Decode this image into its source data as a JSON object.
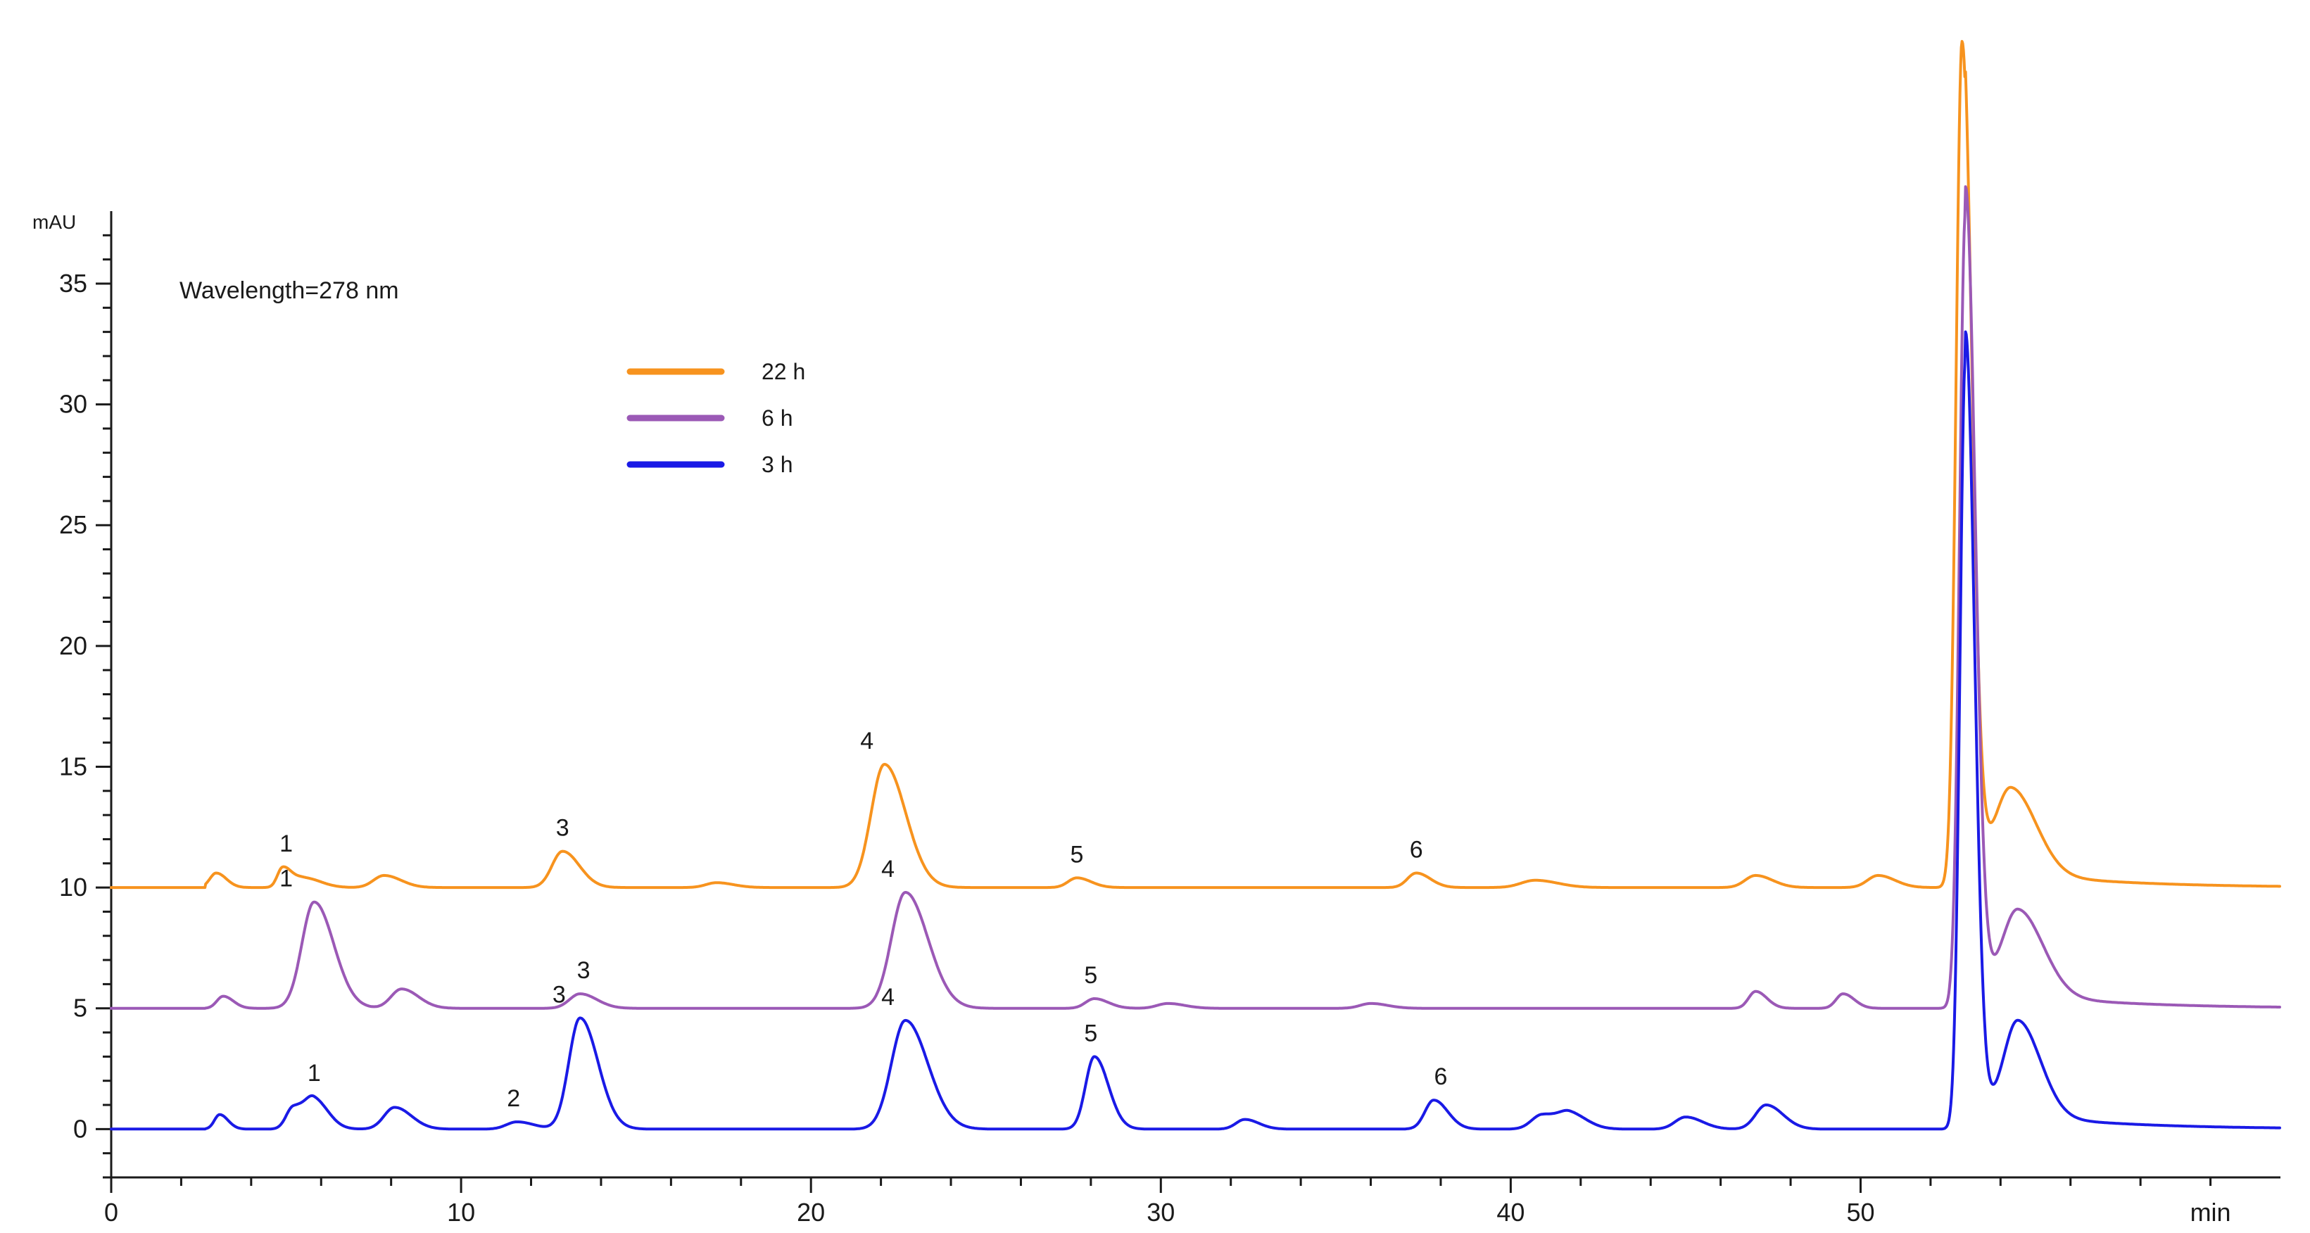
{
  "chart_data": {
    "type": "line",
    "annotation": "Wavelength=278 nm",
    "ylabel": "mAU",
    "xlabel": "min",
    "xlim": [
      0,
      62
    ],
    "ylim": [
      -2,
      38
    ],
    "x_ticks": [
      0,
      10,
      20,
      30,
      40,
      50
    ],
    "y_ticks": [
      0,
      5,
      10,
      15,
      20,
      25,
      30,
      35
    ],
    "legend_position": "upper-left",
    "series": [
      {
        "name": "22 h",
        "color": "#F7931E",
        "baseline": 10.0,
        "peaks": [
          {
            "rt": 3.0,
            "h": 0.6,
            "w": 0.18
          },
          {
            "rt": 4.9,
            "h": 0.8,
            "w": 0.15
          },
          {
            "rt": 5.5,
            "h": 0.4,
            "w": 0.3
          },
          {
            "rt": 7.8,
            "h": 0.5,
            "w": 0.3
          },
          {
            "rt": 12.9,
            "h": 1.5,
            "w": 0.3
          },
          {
            "rt": 17.3,
            "h": 0.2,
            "w": 0.3
          },
          {
            "rt": 22.1,
            "h": 5.1,
            "w": 0.38
          },
          {
            "rt": 27.6,
            "h": 0.4,
            "w": 0.25
          },
          {
            "rt": 37.3,
            "h": 0.6,
            "w": 0.25
          },
          {
            "rt": 40.7,
            "h": 0.3,
            "w": 0.4
          },
          {
            "rt": 47.0,
            "h": 0.5,
            "w": 0.3
          },
          {
            "rt": 50.5,
            "h": 0.5,
            "w": 0.3
          },
          {
            "rt": 52.9,
            "h": 35.0,
            "w": 0.17
          },
          {
            "rt": 54.3,
            "h": 3.5,
            "w": 0.45
          }
        ],
        "peak_labels": [
          {
            "rt": 5.0,
            "label": "1"
          },
          {
            "rt": 12.9,
            "label": "3"
          },
          {
            "rt": 21.6,
            "label": "4"
          },
          {
            "rt": 27.6,
            "label": "5"
          },
          {
            "rt": 37.3,
            "label": "6"
          }
        ]
      },
      {
        "name": "6 h",
        "color": "#9B59B6",
        "baseline": 5.0,
        "peaks": [
          {
            "rt": 3.2,
            "h": 0.5,
            "w": 0.18
          },
          {
            "rt": 5.8,
            "h": 4.4,
            "w": 0.35
          },
          {
            "rt": 8.3,
            "h": 0.8,
            "w": 0.3
          },
          {
            "rt": 13.4,
            "h": 0.6,
            "w": 0.3
          },
          {
            "rt": 22.7,
            "h": 4.8,
            "w": 0.4
          },
          {
            "rt": 28.1,
            "h": 0.4,
            "w": 0.25
          },
          {
            "rt": 30.2,
            "h": 0.2,
            "w": 0.3
          },
          {
            "rt": 36.0,
            "h": 0.2,
            "w": 0.3
          },
          {
            "rt": 47.0,
            "h": 0.7,
            "w": 0.2
          },
          {
            "rt": 49.5,
            "h": 0.6,
            "w": 0.2
          },
          {
            "rt": 53.0,
            "h": 33.0,
            "w": 0.17
          },
          {
            "rt": 54.5,
            "h": 3.5,
            "w": 0.45
          }
        ],
        "peak_labels": [
          {
            "rt": 5.0,
            "label": "1"
          },
          {
            "rt": 13.5,
            "label": "3"
          },
          {
            "rt": 22.2,
            "label": "4"
          },
          {
            "rt": 28.0,
            "label": "5"
          }
        ]
      },
      {
        "name": "3 h",
        "color": "#1A1AE6",
        "baseline": 0.0,
        "peaks": [
          {
            "rt": 3.1,
            "h": 0.6,
            "w": 0.15
          },
          {
            "rt": 5.2,
            "h": 0.9,
            "w": 0.2
          },
          {
            "rt": 5.8,
            "h": 1.2,
            "w": 0.25
          },
          {
            "rt": 8.1,
            "h": 0.9,
            "w": 0.3
          },
          {
            "rt": 11.6,
            "h": 0.3,
            "w": 0.3
          },
          {
            "rt": 13.4,
            "h": 4.6,
            "w": 0.32
          },
          {
            "rt": 22.7,
            "h": 4.5,
            "w": 0.4
          },
          {
            "rt": 28.1,
            "h": 3.0,
            "w": 0.25
          },
          {
            "rt": 32.4,
            "h": 0.4,
            "w": 0.25
          },
          {
            "rt": 37.8,
            "h": 1.2,
            "w": 0.25
          },
          {
            "rt": 40.9,
            "h": 0.6,
            "w": 0.3
          },
          {
            "rt": 41.7,
            "h": 0.6,
            "w": 0.3
          },
          {
            "rt": 45.0,
            "h": 0.5,
            "w": 0.3
          },
          {
            "rt": 47.3,
            "h": 1.0,
            "w": 0.3
          },
          {
            "rt": 53.0,
            "h": 32.0,
            "w": 0.16
          },
          {
            "rt": 54.5,
            "h": 3.9,
            "w": 0.4
          }
        ],
        "peak_labels": [
          {
            "rt": 5.8,
            "label": "1"
          },
          {
            "rt": 11.5,
            "label": "2"
          },
          {
            "rt": 12.8,
            "label": "3"
          },
          {
            "rt": 22.2,
            "label": "4"
          },
          {
            "rt": 28.0,
            "label": "5"
          },
          {
            "rt": 38.0,
            "label": "6"
          }
        ]
      }
    ]
  }
}
